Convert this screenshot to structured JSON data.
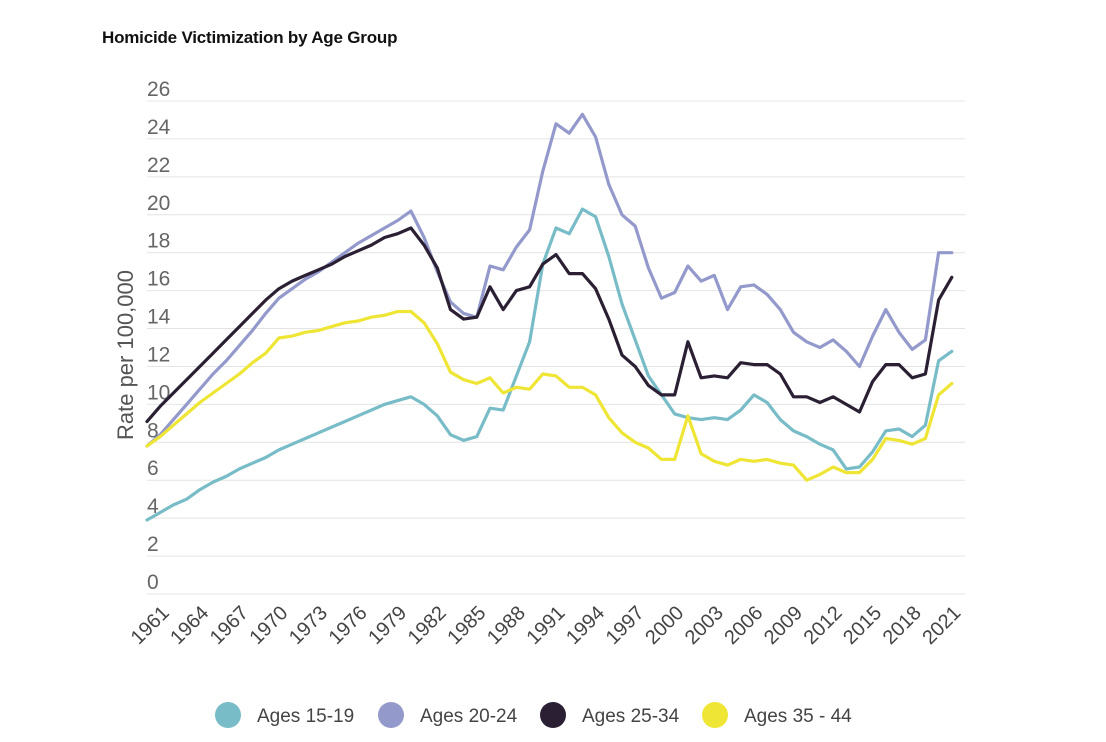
{
  "title": "Homicide Victimization by Age Group",
  "chart_data": {
    "type": "line",
    "title": "Homicide Victimization by Age Group",
    "xlabel": "",
    "ylabel": "Rate per 100,000",
    "ylim": [
      0,
      26
    ],
    "yticks": [
      0,
      2,
      4,
      6,
      8,
      10,
      12,
      14,
      16,
      18,
      20,
      22,
      24,
      26
    ],
    "xlim": [
      1960,
      2022
    ],
    "xtick_labels": [
      "1961",
      "1964",
      "1967",
      "1970",
      "1973",
      "1976",
      "1979",
      "1982",
      "1985",
      "1988",
      "1991",
      "1994",
      "1997",
      "2000",
      "2003",
      "2006",
      "2009",
      "2012",
      "2015",
      "2018",
      "2021"
    ],
    "grid": "horizontal",
    "legend_position": "bottom",
    "x": [
      1960,
      1961,
      1962,
      1963,
      1964,
      1965,
      1966,
      1967,
      1968,
      1969,
      1970,
      1971,
      1972,
      1973,
      1974,
      1975,
      1976,
      1977,
      1978,
      1979,
      1980,
      1981,
      1982,
      1983,
      1984,
      1985,
      1986,
      1987,
      1988,
      1989,
      1990,
      1991,
      1992,
      1993,
      1994,
      1995,
      1996,
      1997,
      1998,
      1999,
      2000,
      2001,
      2002,
      2003,
      2004,
      2005,
      2006,
      2007,
      2008,
      2009,
      2010,
      2011,
      2012,
      2013,
      2014,
      2015,
      2016,
      2017,
      2018,
      2019,
      2020,
      2021
    ],
    "series": [
      {
        "name": "Ages 15-19",
        "color": "#78bcc8",
        "values": [
          3.9,
          4.3,
          4.7,
          5.0,
          5.5,
          5.9,
          6.2,
          6.6,
          6.9,
          7.2,
          7.6,
          7.9,
          8.2,
          8.5,
          8.8,
          9.1,
          9.4,
          9.7,
          10.0,
          10.2,
          10.4,
          10.0,
          9.4,
          8.4,
          8.1,
          8.3,
          9.8,
          9.7,
          11.5,
          13.3,
          17.4,
          19.3,
          19.0,
          20.3,
          19.9,
          17.8,
          15.3,
          13.4,
          11.5,
          10.5,
          9.5,
          9.3,
          9.2,
          9.3,
          9.2,
          9.7,
          10.5,
          10.1,
          9.2,
          8.6,
          8.3,
          7.9,
          7.6,
          6.6,
          6.7,
          7.5,
          8.6,
          8.7,
          8.3,
          8.9,
          12.3,
          12.8
        ]
      },
      {
        "name": "Ages 20-24",
        "color": "#9499cc",
        "values": [
          7.8,
          8.4,
          9.2,
          10.0,
          10.8,
          11.6,
          12.3,
          13.1,
          13.9,
          14.8,
          15.6,
          16.1,
          16.6,
          17.0,
          17.5,
          18.0,
          18.5,
          18.9,
          19.3,
          19.7,
          20.2,
          18.8,
          17.0,
          15.4,
          14.8,
          14.6,
          17.3,
          17.1,
          18.3,
          19.2,
          22.3,
          24.8,
          24.3,
          25.3,
          24.1,
          21.6,
          20.0,
          19.4,
          17.2,
          15.6,
          15.9,
          17.3,
          16.5,
          16.8,
          15.0,
          16.2,
          16.3,
          15.8,
          15.0,
          13.8,
          13.3,
          13.0,
          13.4,
          12.8,
          12.0,
          13.6,
          15.0,
          13.8,
          12.9,
          13.4,
          18.0,
          18.0
        ]
      },
      {
        "name": "Ages 25-34",
        "color": "#2a1f33",
        "values": [
          9.1,
          9.9,
          10.6,
          11.3,
          12.0,
          12.7,
          13.4,
          14.1,
          14.8,
          15.5,
          16.1,
          16.5,
          16.8,
          17.1,
          17.4,
          17.8,
          18.1,
          18.4,
          18.8,
          19.0,
          19.3,
          18.4,
          17.2,
          15.0,
          14.5,
          14.6,
          16.2,
          15.0,
          16.0,
          16.2,
          17.4,
          17.9,
          16.9,
          16.9,
          16.1,
          14.5,
          12.6,
          12.0,
          11.0,
          10.5,
          10.5,
          13.3,
          11.4,
          11.5,
          11.4,
          12.2,
          12.1,
          12.1,
          11.6,
          10.4,
          10.4,
          10.1,
          10.4,
          10.0,
          9.6,
          11.2,
          12.1,
          12.1,
          11.4,
          11.6,
          15.5,
          16.7
        ]
      },
      {
        "name": "Ages 35 - 44",
        "color": "#eee535",
        "values": [
          7.8,
          8.3,
          8.9,
          9.5,
          10.1,
          10.6,
          11.1,
          11.6,
          12.2,
          12.7,
          13.5,
          13.6,
          13.8,
          13.9,
          14.1,
          14.3,
          14.4,
          14.6,
          14.7,
          14.9,
          14.9,
          14.3,
          13.2,
          11.7,
          11.3,
          11.1,
          11.4,
          10.6,
          10.9,
          10.8,
          11.6,
          11.5,
          10.9,
          10.9,
          10.5,
          9.3,
          8.5,
          8.0,
          7.7,
          7.1,
          7.1,
          9.4,
          7.4,
          7.0,
          6.8,
          7.1,
          7.0,
          7.1,
          6.9,
          6.8,
          6.0,
          6.3,
          6.7,
          6.4,
          6.4,
          7.1,
          8.2,
          8.1,
          7.9,
          8.2,
          10.5,
          11.1
        ]
      }
    ]
  }
}
